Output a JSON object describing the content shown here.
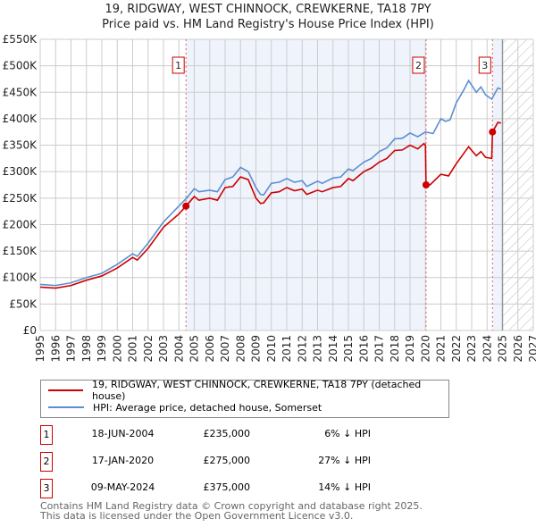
{
  "title": "19, RIDGWAY, WEST CHINNOCK, CREWKERNE, TA18 7PY",
  "subtitle": "Price paid vs. HM Land Registry's House Price Index (HPI)",
  "chart_data": {
    "type": "line",
    "title": "19, RIDGWAY, WEST CHINNOCK, CREWKERNE, TA18 7PY",
    "subtitle": "Price paid vs. HM Land Registry's House Price Index (HPI)",
    "xlim": [
      1995,
      2027
    ],
    "ylim": [
      0,
      550000
    ],
    "x_ticks": [
      "1995",
      "1996",
      "1997",
      "1998",
      "1999",
      "2000",
      "2001",
      "2002",
      "2003",
      "2004",
      "2005",
      "2006",
      "2007",
      "2008",
      "2009",
      "2010",
      "2011",
      "2012",
      "2013",
      "2014",
      "2015",
      "2016",
      "2017",
      "2018",
      "2019",
      "2020",
      "2021",
      "2022",
      "2023",
      "2024",
      "2025",
      "2026",
      "2027"
    ],
    "y_ticks": [
      {
        "v": 0,
        "l": "£0"
      },
      {
        "v": 50000,
        "l": "£50K"
      },
      {
        "v": 100000,
        "l": "£100K"
      },
      {
        "v": 150000,
        "l": "£150K"
      },
      {
        "v": 200000,
        "l": "£200K"
      },
      {
        "v": 250000,
        "l": "£250K"
      },
      {
        "v": 300000,
        "l": "£300K"
      },
      {
        "v": 350000,
        "l": "£350K"
      },
      {
        "v": 400000,
        "l": "£400K"
      },
      {
        "v": 450000,
        "l": "£450K"
      },
      {
        "v": 500000,
        "l": "£500K"
      },
      {
        "v": 550000,
        "l": "£550K"
      }
    ],
    "grid": true,
    "forecast_from": 2025,
    "colors": {
      "property": "#cc0000",
      "hpi": "#5b8fd0",
      "shade": "#eef3fc"
    },
    "series": [
      {
        "name": "19, RIDGWAY, WEST CHINNOCK, CREWKERNE, TA18 7PY (detached house)",
        "key": "property",
        "points": [
          [
            1995,
            82
          ],
          [
            1996,
            80
          ],
          [
            1997,
            85
          ],
          [
            1998,
            95
          ],
          [
            1999,
            103
          ],
          [
            2000,
            118
          ],
          [
            2001,
            138
          ],
          [
            2001.3,
            133
          ],
          [
            2002,
            155
          ],
          [
            2003,
            195
          ],
          [
            2004,
            220
          ],
          [
            2004.46,
            235
          ],
          [
            2005,
            253
          ],
          [
            2005.3,
            246
          ],
          [
            2006,
            250
          ],
          [
            2006.5,
            246
          ],
          [
            2007,
            270
          ],
          [
            2007.5,
            272
          ],
          [
            2008,
            290
          ],
          [
            2008.5,
            285
          ],
          [
            2009,
            250
          ],
          [
            2009.3,
            240
          ],
          [
            2009.5,
            241
          ],
          [
            2010,
            260
          ],
          [
            2010.5,
            262
          ],
          [
            2011,
            270
          ],
          [
            2011.5,
            264
          ],
          [
            2012,
            267
          ],
          [
            2012.3,
            257
          ],
          [
            2013,
            265
          ],
          [
            2013.3,
            262
          ],
          [
            2014,
            270
          ],
          [
            2014.5,
            272
          ],
          [
            2015,
            287
          ],
          [
            2015.3,
            283
          ],
          [
            2016,
            300
          ],
          [
            2016.5,
            307
          ],
          [
            2017,
            318
          ],
          [
            2017.5,
            325
          ],
          [
            2018,
            340
          ],
          [
            2018.5,
            341
          ],
          [
            2019,
            350
          ],
          [
            2019.5,
            343
          ],
          [
            2019.9,
            353
          ],
          [
            2020.0,
            350
          ],
          [
            2020.04,
            275
          ],
          [
            2020.3,
            275
          ],
          [
            2021,
            295
          ],
          [
            2021.5,
            292
          ],
          [
            2022,
            315
          ],
          [
            2022.5,
            335
          ],
          [
            2022.8,
            347
          ],
          [
            2023.3,
            330
          ],
          [
            2023.6,
            338
          ],
          [
            2023.9,
            327
          ],
          [
            2024.3,
            325
          ],
          [
            2024.35,
            375
          ],
          [
            2024.7,
            393
          ],
          [
            2024.9,
            392
          ]
        ]
      },
      {
        "name": "HPI: Average price, detached house, Somerset",
        "key": "hpi",
        "points": [
          [
            1995,
            87
          ],
          [
            1996,
            85
          ],
          [
            1997,
            90
          ],
          [
            1998,
            100
          ],
          [
            1999,
            108
          ],
          [
            2000,
            125
          ],
          [
            2001,
            145
          ],
          [
            2001.3,
            140
          ],
          [
            2002,
            165
          ],
          [
            2003,
            205
          ],
          [
            2004,
            235
          ],
          [
            2004.5,
            250
          ],
          [
            2005,
            268
          ],
          [
            2005.3,
            262
          ],
          [
            2006,
            265
          ],
          [
            2006.5,
            262
          ],
          [
            2007,
            285
          ],
          [
            2007.5,
            290
          ],
          [
            2008,
            308
          ],
          [
            2008.5,
            300
          ],
          [
            2009,
            270
          ],
          [
            2009.3,
            257
          ],
          [
            2009.5,
            256
          ],
          [
            2010,
            278
          ],
          [
            2010.5,
            280
          ],
          [
            2011,
            287
          ],
          [
            2011.5,
            280
          ],
          [
            2012,
            283
          ],
          [
            2012.3,
            272
          ],
          [
            2013,
            282
          ],
          [
            2013.3,
            278
          ],
          [
            2014,
            288
          ],
          [
            2014.5,
            290
          ],
          [
            2015,
            305
          ],
          [
            2015.3,
            302
          ],
          [
            2016,
            318
          ],
          [
            2016.5,
            325
          ],
          [
            2017,
            338
          ],
          [
            2017.5,
            345
          ],
          [
            2018,
            362
          ],
          [
            2018.5,
            363
          ],
          [
            2019,
            373
          ],
          [
            2019.5,
            366
          ],
          [
            2020,
            375
          ],
          [
            2020.5,
            372
          ],
          [
            2021,
            400
          ],
          [
            2021.3,
            395
          ],
          [
            2021.6,
            398
          ],
          [
            2022,
            430
          ],
          [
            2022.5,
            455
          ],
          [
            2022.8,
            472
          ],
          [
            2023.3,
            450
          ],
          [
            2023.6,
            460
          ],
          [
            2023.9,
            445
          ],
          [
            2024.3,
            437
          ],
          [
            2024.7,
            458
          ],
          [
            2024.9,
            456
          ]
        ]
      }
    ],
    "y_units": "thousands GBP",
    "sales": [
      {
        "label": "1",
        "x": 2004.46,
        "y": 235
      },
      {
        "label": "2",
        "x": 2020.04,
        "y": 275
      },
      {
        "label": "3",
        "x": 2024.35,
        "y": 375
      }
    ]
  },
  "legend": {
    "property": "19, RIDGWAY, WEST CHINNOCK, CREWKERNE, TA18 7PY (detached house)",
    "hpi": "HPI: Average price, detached house, Somerset"
  },
  "transactions": [
    {
      "num": "1",
      "date": "18-JUN-2004",
      "price": "£235,000",
      "hpi": "6% ↓ HPI"
    },
    {
      "num": "2",
      "date": "17-JAN-2020",
      "price": "£275,000",
      "hpi": "27% ↓ HPI"
    },
    {
      "num": "3",
      "date": "09-MAY-2024",
      "price": "£375,000",
      "hpi": "14% ↓ HPI"
    }
  ],
  "footer": {
    "line1": "Contains HM Land Registry data © Crown copyright and database right 2025.",
    "line2": "This data is licensed under the Open Government Licence v3.0."
  }
}
